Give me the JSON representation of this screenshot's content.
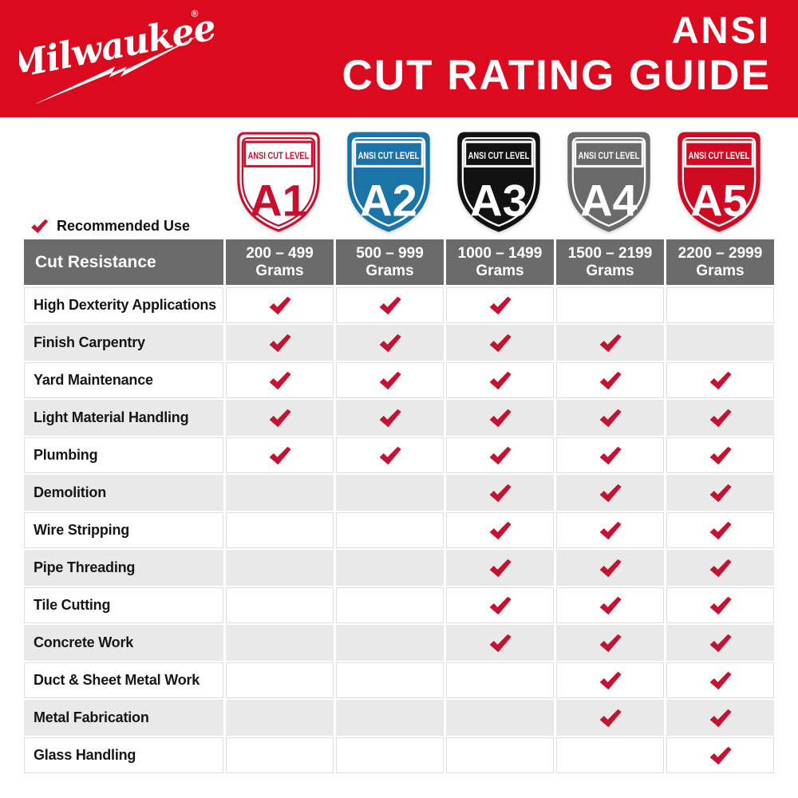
{
  "header": {
    "brand": "Milwaukee",
    "brand_mark": "®",
    "title_line1": "ANSI",
    "title_line2": "CUT RATING GUIDE",
    "bg_color": "#DB0A1E"
  },
  "shields": [
    {
      "level": "A1",
      "label": "ANSI CUT LEVEL",
      "fill": "#FFFFFF",
      "accent": "#C8102E",
      "text_color": "#C8102E",
      "outline": "#C8102E"
    },
    {
      "level": "A2",
      "label": "ANSI CUT LEVEL",
      "fill": "#1B74A8",
      "accent": "#FFFFFF",
      "text_color": "#FFFFFF",
      "outline": "#1B74A8"
    },
    {
      "level": "A3",
      "label": "ANSI CUT LEVEL",
      "fill": "#121212",
      "accent": "#FFFFFF",
      "text_color": "#FFFFFF",
      "outline": "#121212"
    },
    {
      "level": "A4",
      "label": "ANSI CUT LEVEL",
      "fill": "#6A6A6A",
      "accent": "#FFFFFF",
      "text_color": "#FFFFFF",
      "outline": "#6A6A6A"
    },
    {
      "level": "A5",
      "label": "ANSI CUT LEVEL",
      "fill": "#CF0A22",
      "accent": "#FFFFFF",
      "text_color": "#FFFFFF",
      "outline": "#CF0A22"
    }
  ],
  "legend": {
    "label": "Recommended Use",
    "icon": "check-icon"
  },
  "table": {
    "corner_header": "Cut Resistance",
    "columns": [
      {
        "range": "200 – 499",
        "unit": "Grams"
      },
      {
        "range": "500 – 999",
        "unit": "Grams"
      },
      {
        "range": "1000 – 1499",
        "unit": "Grams"
      },
      {
        "range": "1500 – 2199",
        "unit": "Grams"
      },
      {
        "range": "2200 – 2999",
        "unit": "Grams"
      }
    ],
    "rows": [
      {
        "label": "High Dexterity Applications",
        "checks": [
          true,
          true,
          true,
          false,
          false
        ]
      },
      {
        "label": "Finish Carpentry",
        "checks": [
          true,
          true,
          true,
          true,
          false
        ]
      },
      {
        "label": "Yard Maintenance",
        "checks": [
          true,
          true,
          true,
          true,
          true
        ]
      },
      {
        "label": "Light Material Handling",
        "checks": [
          true,
          true,
          true,
          true,
          true
        ]
      },
      {
        "label": "Plumbing",
        "checks": [
          true,
          true,
          true,
          true,
          true
        ]
      },
      {
        "label": "Demolition",
        "checks": [
          false,
          false,
          true,
          true,
          true
        ]
      },
      {
        "label": "Wire Stripping",
        "checks": [
          false,
          false,
          true,
          true,
          true
        ]
      },
      {
        "label": "Pipe Threading",
        "checks": [
          false,
          false,
          true,
          true,
          true
        ]
      },
      {
        "label": "Tile Cutting",
        "checks": [
          false,
          false,
          true,
          true,
          true
        ]
      },
      {
        "label": "Concrete Work",
        "checks": [
          false,
          false,
          true,
          true,
          true
        ]
      },
      {
        "label": "Duct & Sheet Metal Work",
        "checks": [
          false,
          false,
          false,
          true,
          true
        ]
      },
      {
        "label": "Metal Fabrication",
        "checks": [
          false,
          false,
          false,
          true,
          true
        ]
      },
      {
        "label": "Glass Handling",
        "checks": [
          false,
          false,
          false,
          false,
          true
        ]
      }
    ],
    "colors": {
      "header_bg": "#6B6B6B",
      "alt_row_bg": "#E9E9E9",
      "check": "#C41230",
      "grid_hairline": "#DEDEDE"
    }
  }
}
